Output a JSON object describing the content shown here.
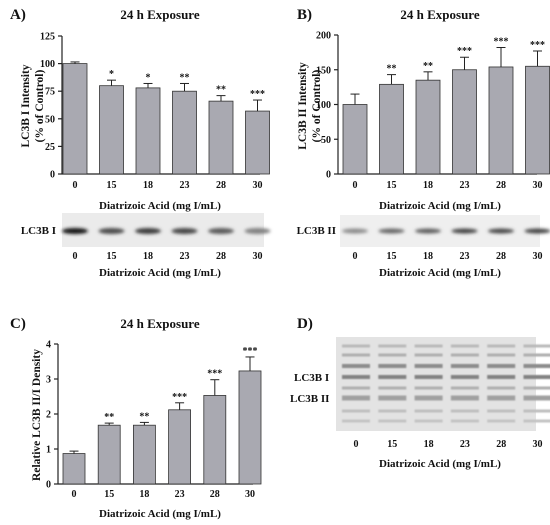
{
  "chart_data": [
    {
      "panel": "A)",
      "type": "bar",
      "title": "24 h Exposure",
      "ylabel_lines": [
        "LC3B I Intensity",
        "(% of Control)"
      ],
      "xlabel": "Diatrizoic Acid (mg I/mL)",
      "categories": [
        "0",
        "15",
        "18",
        "23",
        "28",
        "30"
      ],
      "values": [
        100,
        80,
        78,
        75,
        66,
        57
      ],
      "errors": [
        1.5,
        5,
        4,
        7,
        5,
        10
      ],
      "significance": [
        "",
        "*",
        "*",
        "**",
        "**",
        "***"
      ],
      "ylim": [
        0,
        125
      ],
      "yticks": [
        0,
        25,
        50,
        75,
        100,
        125
      ],
      "bar_color": "#a9a9b1"
    },
    {
      "panel": "B)",
      "type": "bar",
      "title": "24 h Exposure",
      "ylabel_lines": [
        "LC3B II Intensity",
        "(% of Control)"
      ],
      "xlabel": "Diatrizoic Acid (mg I/mL)",
      "categories": [
        "0",
        "15",
        "18",
        "23",
        "28",
        "30"
      ],
      "values": [
        100,
        129,
        135,
        150,
        154,
        155
      ],
      "errors": [
        15,
        14,
        12,
        18,
        28,
        22
      ],
      "significance": [
        "",
        "**",
        "**",
        "***",
        "***",
        "***"
      ],
      "ylim": [
        0,
        200
      ],
      "yticks": [
        0,
        50,
        100,
        150,
        200
      ],
      "bar_color": "#a9a9b1"
    },
    {
      "panel": "C)",
      "type": "bar",
      "title": "24 h Exposure",
      "ylabel_lines": [
        "Relative LC3B II/I Density"
      ],
      "xlabel": "Diatrizoic Acid (mg I/mL)",
      "categories": [
        "0",
        "15",
        "18",
        "23",
        "28",
        "30"
      ],
      "values": [
        0.87,
        1.68,
        1.68,
        2.12,
        2.53,
        3.23
      ],
      "errors": [
        0.07,
        0.06,
        0.08,
        0.2,
        0.45,
        0.4
      ],
      "significance": [
        "",
        "**",
        "**",
        "***",
        "***",
        "***"
      ],
      "ylim": [
        0,
        4
      ],
      "yticks": [
        0,
        1,
        2,
        3,
        4
      ],
      "bar_color": "#a9a9b1"
    }
  ],
  "blots": {
    "a": {
      "label": "LC3B I",
      "lanes": [
        "0",
        "15",
        "18",
        "23",
        "28",
        "30"
      ],
      "band_intensity": [
        1.0,
        0.7,
        0.8,
        0.72,
        0.62,
        0.4
      ],
      "xlabel": "Diatrizoic Acid (mg I/mL)"
    },
    "b": {
      "label": "LC3B II",
      "lanes": [
        "0",
        "15",
        "18",
        "23",
        "28",
        "30"
      ],
      "band_intensity": [
        0.35,
        0.55,
        0.6,
        0.75,
        0.72,
        0.75
      ],
      "xlabel": "Diatrizoic Acid (mg I/mL)"
    },
    "d": {
      "panel": "D)",
      "label_upper": "LC3B I",
      "label_lower": "LC3B II",
      "lanes": [
        "0",
        "15",
        "18",
        "23",
        "28",
        "30"
      ],
      "xlabel": "Diatrizoic Acid (mg I/mL)"
    }
  }
}
